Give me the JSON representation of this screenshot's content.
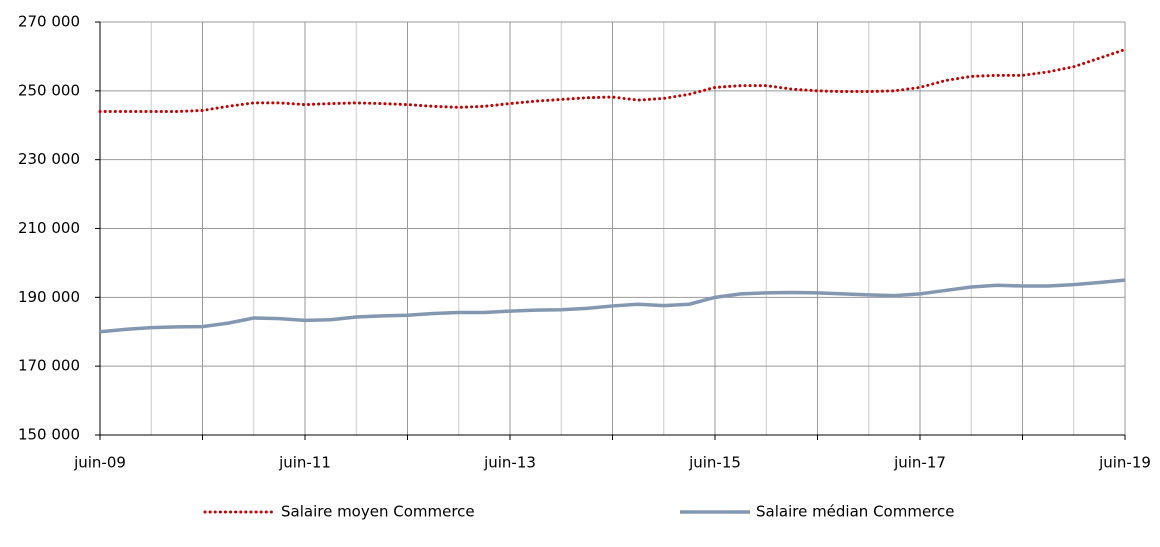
{
  "chart_data": {
    "type": "line",
    "categories": [
      "juin-09",
      null,
      null,
      null,
      null,
      null,
      null,
      null,
      "juin-11",
      null,
      null,
      null,
      null,
      null,
      null,
      null,
      "juin-13",
      null,
      null,
      null,
      null,
      null,
      null,
      null,
      "juin-15",
      null,
      null,
      null,
      null,
      null,
      null,
      null,
      "juin-17",
      null,
      null,
      null,
      null,
      null,
      null,
      null,
      "juin-19"
    ],
    "series": [
      {
        "name": "Salaire moyen Commerce",
        "color": "#c00000",
        "style": "dotted",
        "values": [
          244000,
          244000,
          244000,
          244000,
          244300,
          245500,
          246500,
          246500,
          246000,
          246300,
          246500,
          246300,
          246000,
          245500,
          245200,
          245500,
          246300,
          247000,
          247500,
          248000,
          248200,
          247300,
          247800,
          249000,
          251000,
          251500,
          251500,
          250500,
          250000,
          249800,
          249800,
          250000,
          251000,
          253000,
          254200,
          254500,
          254500,
          255500,
          257000,
          259500,
          262000
        ]
      },
      {
        "name": "Salaire médian Commerce",
        "color": "#8497b0",
        "style": "solid",
        "values": [
          180000,
          180700,
          181200,
          181400,
          181500,
          182500,
          184000,
          183800,
          183300,
          183500,
          184300,
          184600,
          184800,
          185300,
          185600,
          185600,
          186000,
          186300,
          186400,
          186800,
          187500,
          188000,
          187600,
          188000,
          190000,
          191000,
          191300,
          191400,
          191300,
          191000,
          190700,
          190500,
          191000,
          192000,
          193000,
          193500,
          193300,
          193300,
          193700,
          194300,
          195000
        ]
      }
    ],
    "ylim": [
      150000,
      270000
    ],
    "yticks": [
      {
        "value": 150000,
        "label": "150 000"
      },
      {
        "value": 170000,
        "label": "170 000"
      },
      {
        "value": 190000,
        "label": "190 000"
      },
      {
        "value": 210000,
        "label": "210 000"
      },
      {
        "value": 230000,
        "label": "230 000"
      },
      {
        "value": 250000,
        "label": "250 000"
      },
      {
        "value": 270000,
        "label": "270 000"
      }
    ],
    "grid": true,
    "legend": "bottom"
  }
}
